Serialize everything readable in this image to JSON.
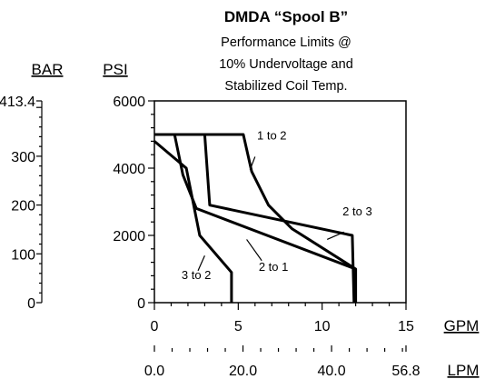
{
  "chart_data": {
    "type": "line",
    "title": "DMDA “Spool B”",
    "subtitle": [
      "Performance Limits @",
      "10% Undervoltage and",
      "Stabilized Coil Temp."
    ],
    "x_axis": {
      "label": "GPM",
      "min": 0,
      "max": 15,
      "ticks": [
        "0",
        "5",
        "10",
        "15"
      ],
      "tick_values": [
        0,
        5,
        10,
        15
      ]
    },
    "x2_axis": {
      "label": "LPM",
      "min": 0,
      "max": 56.8,
      "ticks": [
        "0.0",
        "20.0",
        "40.0",
        "56.8"
      ],
      "tick_values": [
        0,
        20,
        40,
        56.8
      ]
    },
    "y_axis": {
      "label": "PSI",
      "min": 0,
      "max": 6000,
      "ticks": [
        "0",
        "2000",
        "4000",
        "6000"
      ],
      "tick_values": [
        0,
        2000,
        4000,
        6000
      ]
    },
    "y2_axis": {
      "label": "BAR",
      "min": 0,
      "max": 413.4,
      "ticks": [
        "0",
        "100",
        "200",
        "300",
        "413.4"
      ],
      "tick_values": [
        0,
        100,
        200,
        300,
        413.4
      ]
    },
    "grid": false,
    "series": [
      {
        "annotation": "1 to 2",
        "points": [
          [
            0,
            5000
          ],
          [
            5.3,
            5000
          ],
          [
            5.8,
            3900
          ],
          [
            6.8,
            2900
          ],
          [
            8.2,
            2200
          ],
          [
            12,
            1000
          ]
        ]
      },
      {
        "annotation": "2 to 3",
        "points": [
          [
            0,
            5000
          ],
          [
            3,
            5000
          ],
          [
            3.3,
            2900
          ],
          [
            11.8,
            2000
          ],
          [
            11.9,
            0
          ]
        ]
      },
      {
        "annotation": "2 to 1",
        "points": [
          [
            0,
            5000
          ],
          [
            1.2,
            5000
          ],
          [
            1.7,
            3800
          ],
          [
            2.5,
            2800
          ],
          [
            12,
            1000
          ],
          [
            12,
            0
          ]
        ]
      },
      {
        "annotation": "3 to 2",
        "points": [
          [
            0,
            4800
          ],
          [
            1.9,
            4000
          ],
          [
            2.7,
            2000
          ],
          [
            4.6,
            900
          ],
          [
            4.6,
            0
          ]
        ]
      }
    ]
  }
}
